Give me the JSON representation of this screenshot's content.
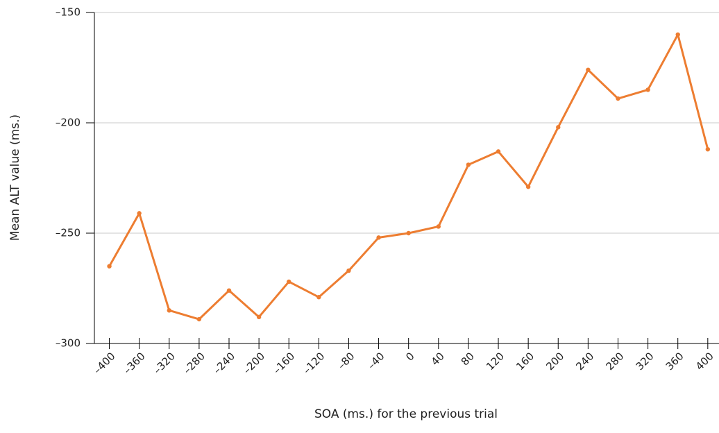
{
  "chart_data": {
    "type": "line",
    "x_label": "SOA (ms.) for the previous trial",
    "y_label": "Mean ALT value (ms.)",
    "x": [
      -400,
      -360,
      -320,
      -280,
      -240,
      -200,
      -160,
      -120,
      -80,
      -40,
      0,
      40,
      80,
      120,
      160,
      200,
      240,
      280,
      320,
      360,
      400
    ],
    "values": [
      -265,
      -241,
      -285,
      -289,
      -276,
      -288,
      -272,
      -279,
      -267,
      -252,
      -250,
      -247,
      -219,
      -213,
      -229,
      -202,
      -176,
      -189,
      -185,
      -160,
      -212
    ],
    "color": "#ed7d31",
    "xlim": [
      -420,
      415
    ],
    "xticks": [
      {
        "value": -400,
        "label": "–400"
      },
      {
        "value": -360,
        "label": "–360"
      },
      {
        "value": -320,
        "label": "–320"
      },
      {
        "value": -280,
        "label": "–280"
      },
      {
        "value": -240,
        "label": "–240"
      },
      {
        "value": -200,
        "label": "–200"
      },
      {
        "value": -160,
        "label": "–160"
      },
      {
        "value": -120,
        "label": "–120"
      },
      {
        "value": -80,
        "label": "–80"
      },
      {
        "value": -40,
        "label": "–40"
      },
      0,
      40,
      80,
      120,
      160,
      200,
      240,
      280,
      320,
      360,
      400
    ],
    "ylim": [
      -300,
      -150
    ],
    "yticks": [
      {
        "value": -300,
        "label": "–300"
      },
      {
        "value": -250,
        "label": "–250"
      },
      {
        "value": -200,
        "label": "–200"
      },
      {
        "value": -150,
        "label": "–150"
      }
    ],
    "grid": true
  }
}
